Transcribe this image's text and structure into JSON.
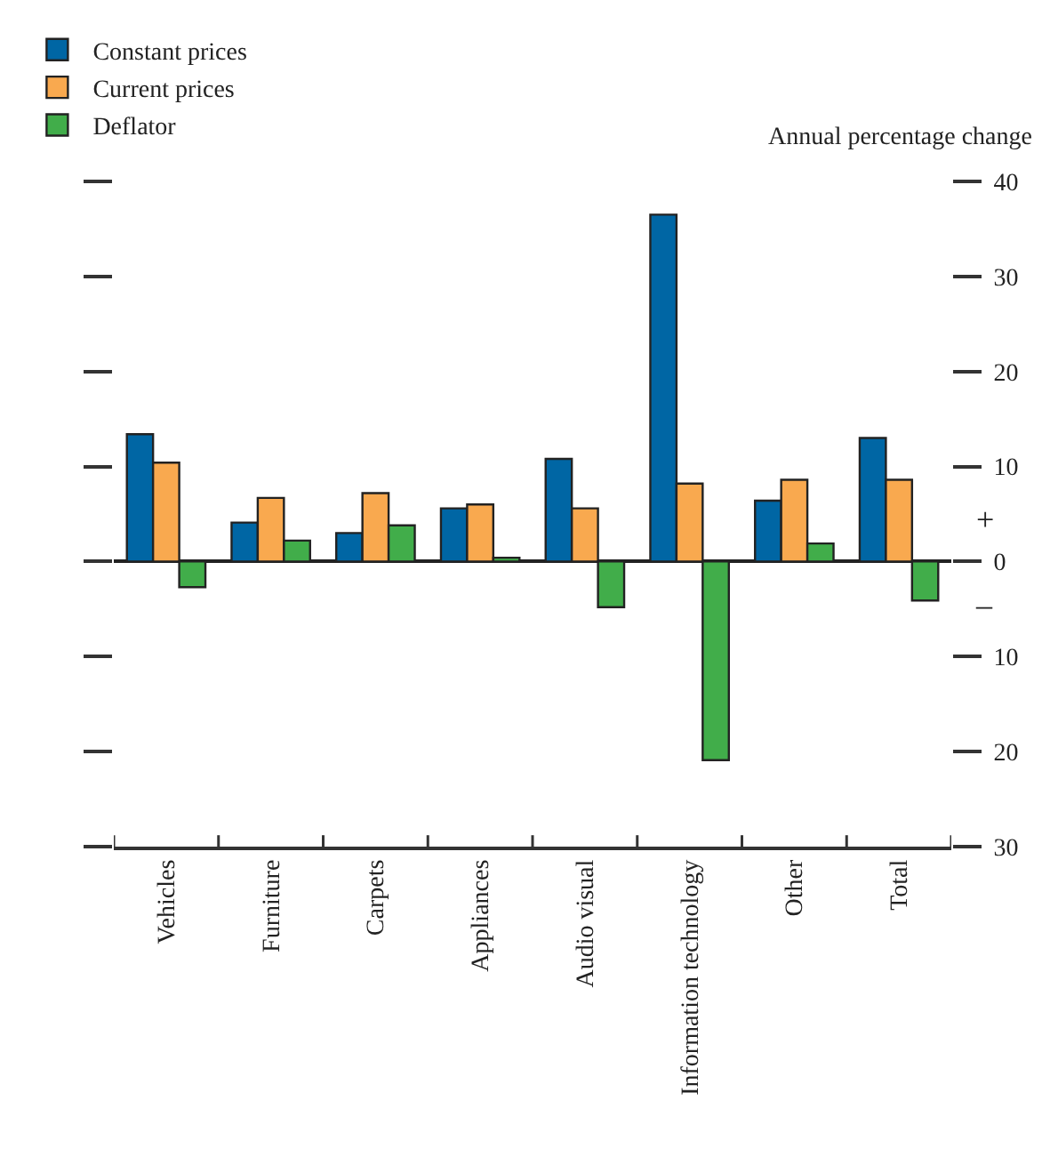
{
  "chart_data": {
    "type": "bar",
    "ylabel": "Annual percentage change",
    "categories": [
      "Vehicles",
      "Furniture",
      "Carpets",
      "Appliances",
      "Audio visual",
      "Information technology",
      "Other",
      "Total"
    ],
    "series": [
      {
        "name": "Constant prices",
        "color": "#0066a4",
        "values": [
          13.4,
          4.1,
          3.0,
          5.6,
          10.8,
          36.5,
          6.4,
          13.0
        ]
      },
      {
        "name": "Current prices",
        "color": "#f9a94f",
        "values": [
          10.4,
          6.7,
          7.2,
          6.0,
          5.6,
          8.2,
          8.6,
          8.6
        ]
      },
      {
        "name": "Deflator",
        "color": "#41ad4a",
        "values": [
          -2.7,
          2.2,
          3.8,
          0.4,
          -4.8,
          -20.9,
          1.9,
          -4.1
        ]
      }
    ],
    "ylim": [
      -30,
      40
    ],
    "yticks": [
      {
        "value": -30,
        "label": "30"
      },
      {
        "value": -20,
        "label": "20"
      },
      {
        "value": -10,
        "label": "10"
      },
      0,
      10,
      20,
      30,
      40
    ],
    "annotations": [
      "+",
      "–"
    ],
    "legend": "top left"
  }
}
